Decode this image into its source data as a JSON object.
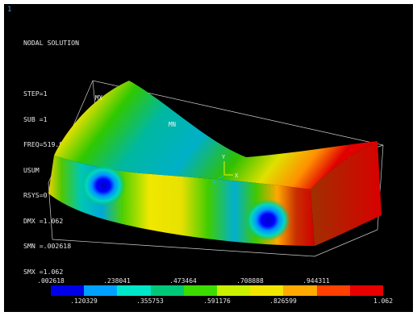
{
  "window_number": "1",
  "info_lines": [
    "NODAL SOLUTION",
    "",
    "STEP=1",
    "SUB =1",
    "FREQ=519.922",
    "USUM      (AVG)",
    "RSYS=0",
    "DMX =1.062",
    "SMN =.002618",
    "SMX =1.062"
  ],
  "markers": {
    "max_label": "MX",
    "min_label": "MN"
  },
  "triad": {
    "y_label": "Y",
    "x_label": "X",
    "z_label": "Z"
  },
  "legend": {
    "colors": [
      "#0000e6",
      "#00a0ff",
      "#00e6c8",
      "#00c878",
      "#3cdc00",
      "#c8f000",
      "#f0e600",
      "#ffaa00",
      "#ff4000",
      "#e60000"
    ],
    "upper_ticks": [
      ".002618",
      ".238041",
      ".473464",
      ".708888",
      ".944311"
    ],
    "lower_ticks": [
      ".120329",
      ".355753",
      ".591176",
      ".826599",
      "1.062"
    ]
  }
}
